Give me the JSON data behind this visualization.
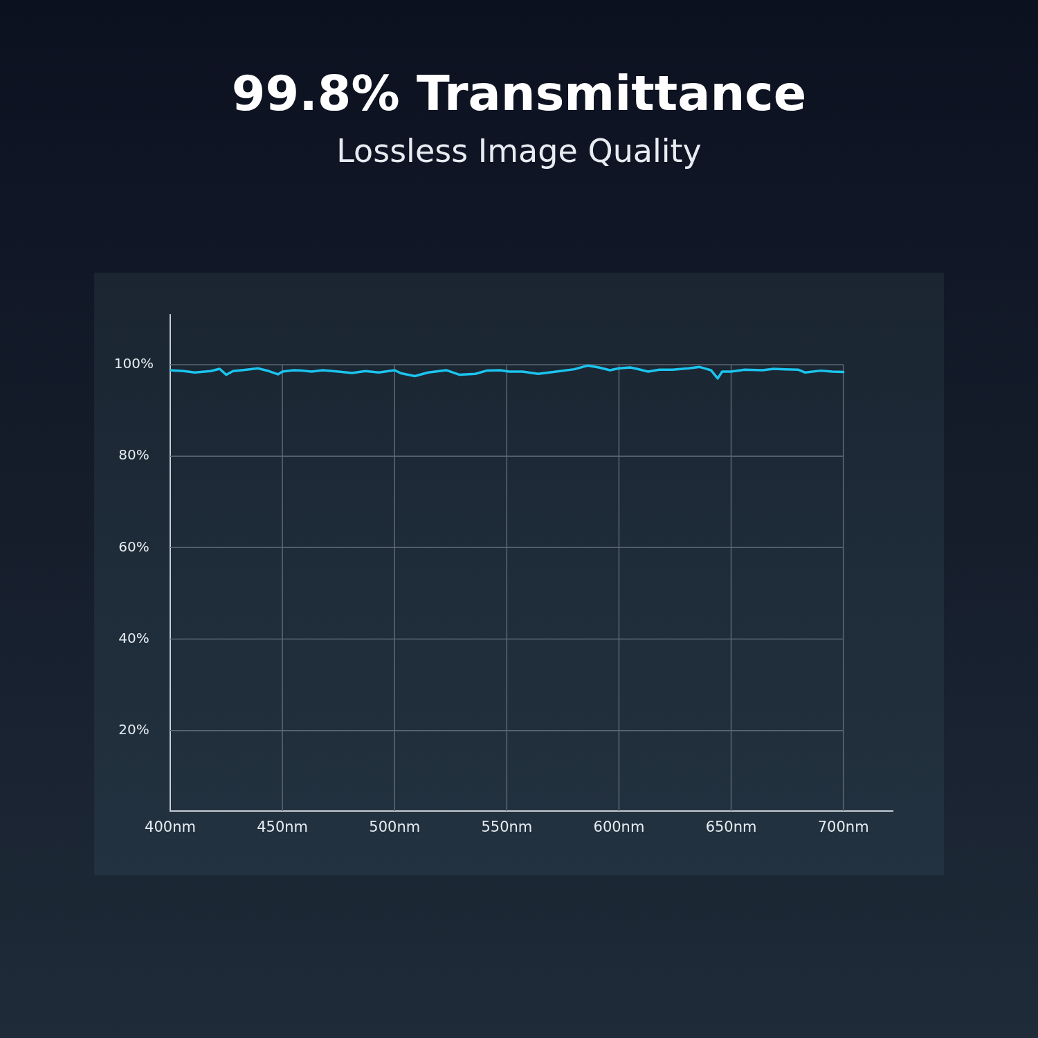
{
  "chart_data": {
    "type": "line",
    "title": "99.8% Transmittance",
    "subtitle": "Lossless Image Quality",
    "x": [
      400,
      406,
      411,
      418,
      422,
      425,
      428,
      434,
      439,
      444,
      448,
      450,
      455,
      459,
      463,
      468,
      475,
      481,
      487,
      493,
      500,
      503,
      509,
      515,
      523,
      529,
      536,
      541,
      547,
      551,
      557,
      564,
      572,
      580,
      586,
      591,
      596,
      600,
      605,
      608,
      613,
      618,
      624,
      631,
      636,
      641,
      644,
      646,
      650,
      656,
      664,
      669,
      674,
      680,
      683,
      690,
      695,
      700
    ],
    "values": [
      98.8,
      98.6,
      98.3,
      98.6,
      99.1,
      97.8,
      98.6,
      98.9,
      99.2,
      98.6,
      97.9,
      98.5,
      98.8,
      98.7,
      98.5,
      98.8,
      98.5,
      98.2,
      98.6,
      98.3,
      98.8,
      98.1,
      97.5,
      98.3,
      98.8,
      97.8,
      98.0,
      98.7,
      98.8,
      98.5,
      98.5,
      98.0,
      98.5,
      99.0,
      99.8,
      99.4,
      98.8,
      99.2,
      99.4,
      99.1,
      98.5,
      98.9,
      98.9,
      99.2,
      99.5,
      98.8,
      97.0,
      98.5,
      98.5,
      98.9,
      98.8,
      99.1,
      99.0,
      98.9,
      98.3,
      98.7,
      98.5,
      98.4
    ],
    "color": "#1bc4ef",
    "xlim": [
      400,
      722
    ],
    "xticks": [
      {
        "value": 400,
        "label": "400nm"
      },
      {
        "value": 450,
        "label": "450nm"
      },
      {
        "value": 500,
        "label": "500nm"
      },
      {
        "value": 550,
        "label": "550nm"
      },
      {
        "value": 600,
        "label": "600nm"
      },
      {
        "value": 650,
        "label": "650nm"
      },
      {
        "value": 700,
        "label": "700nm"
      }
    ],
    "ylim": [
      2.4,
      110.9
    ],
    "yticks": [
      {
        "value": 20,
        "label": "20%"
      },
      {
        "value": 40,
        "label": "40%"
      },
      {
        "value": 60,
        "label": "60%"
      },
      {
        "value": 80,
        "label": "80%"
      },
      {
        "value": 100,
        "label": "100%"
      }
    ],
    "grid": true
  }
}
